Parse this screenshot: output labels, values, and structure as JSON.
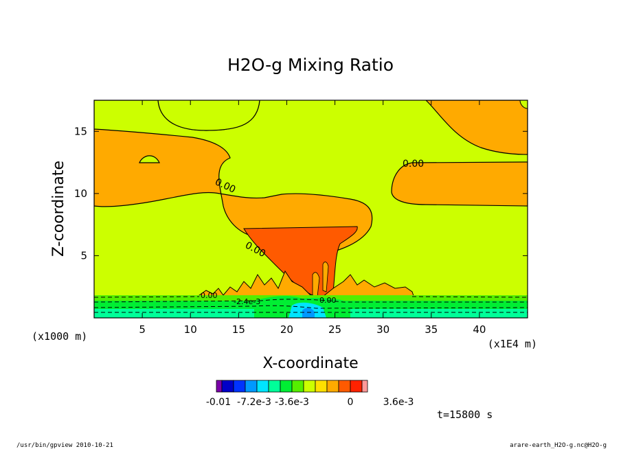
{
  "chart_data": {
    "type": "heatmap",
    "title": "H2O-g Mixing Ratio",
    "xlabel": "X-coordinate",
    "ylabel": "Z-coordinate",
    "x_scale_label": "(x1E4 m)",
    "y_scale_label": "(x1000 m)",
    "xlim": [
      0,
      45
    ],
    "ylim": [
      0,
      17.5
    ],
    "x_ticks": [
      5,
      10,
      15,
      20,
      25,
      30,
      35,
      40
    ],
    "y_ticks": [
      5,
      10,
      15
    ],
    "contour_labels": [
      "0.00",
      "0.00",
      "0.00",
      "0.00",
      "0.00",
      "-2.4e-3"
    ],
    "colorbar": {
      "colors": [
        "#7a00a8",
        "#0000c8",
        "#0033ff",
        "#0099ff",
        "#00e5ff",
        "#00ff99",
        "#00ee33",
        "#55ee00",
        "#ccff00",
        "#ffe000",
        "#ffaa00",
        "#ff5a00",
        "#ff2200",
        "#ff9999"
      ],
      "tick_labels": [
        "-0.01",
        "-7.2e-3",
        "-3.6e-3",
        "0",
        "3.6e-3"
      ]
    },
    "time_label": "t=15800 s",
    "footer_left": "/usr/bin/gpview   2010-10-21",
    "footer_right": "arare-earth_H2O-g.nc@H2O-g"
  }
}
